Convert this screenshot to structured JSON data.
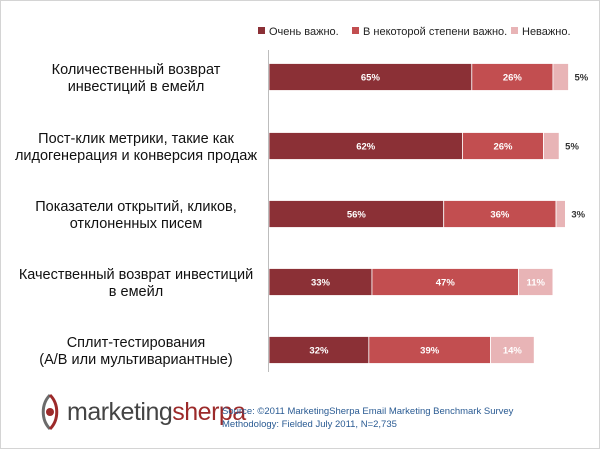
{
  "chart_data": {
    "type": "bar",
    "orientation": "horizontal",
    "stacked": true,
    "categories": [
      [
        "Количественный возврат",
        "инвестиций в емейл"
      ],
      [
        "Пост-клик метрики, такие как",
        "лидогенерация и конверсия продаж"
      ],
      [
        "Показатели открытий, кликов,",
        "отклоненных писем"
      ],
      [
        "Качественный возврат инвестиций",
        "в емейл"
      ],
      [
        "Сплит-тестирования",
        "(А/В или мультивариантные)"
      ]
    ],
    "series": [
      {
        "name": "Очень важно.",
        "color": "#8b3036",
        "values": [
          65,
          62,
          56,
          33,
          32
        ]
      },
      {
        "name": "В некоторой степени важно.",
        "color": "#c24e50",
        "values": [
          26,
          26,
          36,
          47,
          39
        ]
      },
      {
        "name": "Неважно.",
        "color": "#e8b4b6",
        "values": [
          5,
          5,
          3,
          11,
          14
        ]
      }
    ],
    "value_labels": [
      [
        "65%",
        "26%",
        "5%"
      ],
      [
        "62%",
        "26%",
        "5%"
      ],
      [
        "56%",
        "36%",
        "3%"
      ],
      [
        "33%",
        "47%",
        "11%"
      ],
      [
        "32%",
        "39%",
        "14%"
      ]
    ],
    "xlim": [
      0,
      100
    ],
    "grid": false,
    "legend_position": "top-right"
  },
  "footer": {
    "logo_word1": "marketing",
    "logo_word2": "sherpa",
    "source_line1": "Source: ©2011 MarketingSherpa Email Marketing Benchmark Survey",
    "source_line2": "Methodology: Fielded July 2011, N=2,735"
  }
}
